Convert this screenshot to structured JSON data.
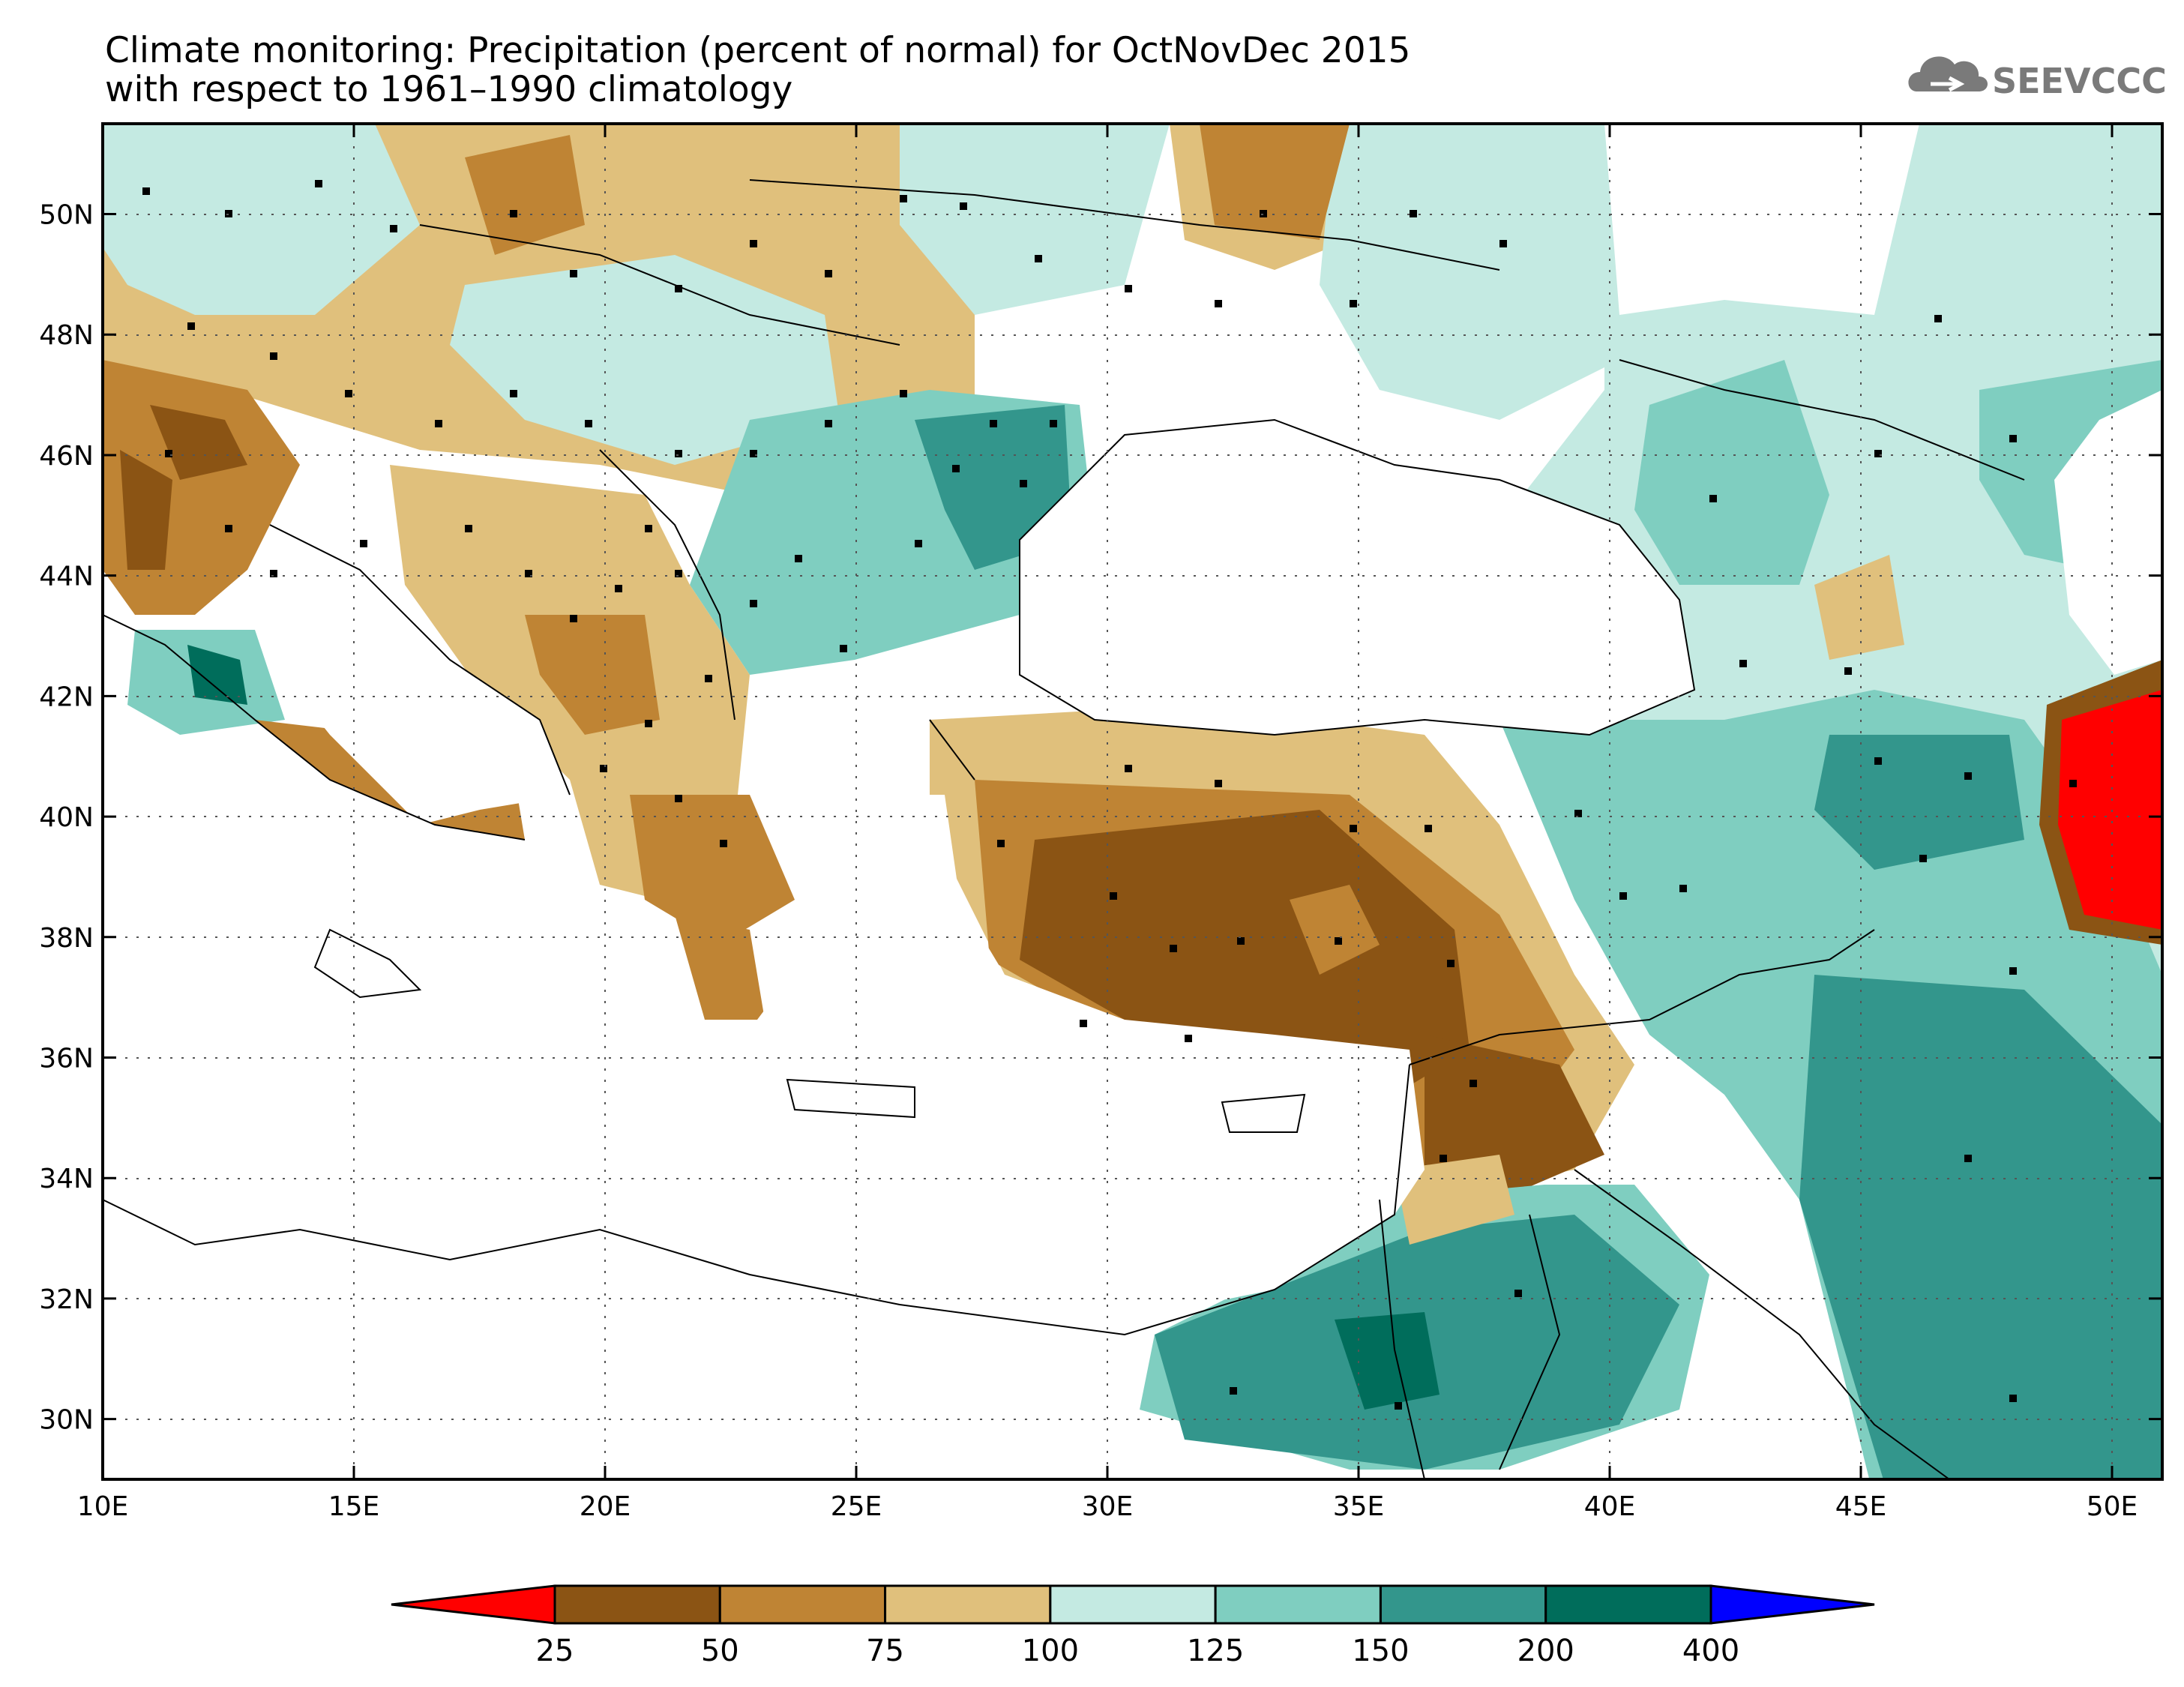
{
  "title_line1": "Climate monitoring: Precipitation (percent of normal) for OctNovDec 2015",
  "title_line2": "with respect to 1961–1990 climatology",
  "logo_text": "SEEVCCC",
  "map": {
    "lon_range": [
      10,
      51
    ],
    "lat_range": [
      29,
      51.5
    ],
    "x_ticks": [
      "10E",
      "15E",
      "20E",
      "25E",
      "30E",
      "35E",
      "40E",
      "45E",
      "50E"
    ],
    "y_ticks": [
      "50N",
      "48N",
      "46N",
      "44N",
      "42N",
      "40N",
      "38N",
      "36N",
      "34N",
      "32N",
      "30N"
    ],
    "gridlines": "dotted"
  },
  "legend": {
    "labels": [
      "25",
      "50",
      "75",
      "100",
      "125",
      "150",
      "200",
      "400"
    ],
    "colors": [
      "#ff0000",
      "#8b5414",
      "#bf8434",
      "#e0c07c",
      "#c4eae2",
      "#7fcec0",
      "#33968c",
      "#006d5b",
      "#0000ff"
    ]
  }
}
